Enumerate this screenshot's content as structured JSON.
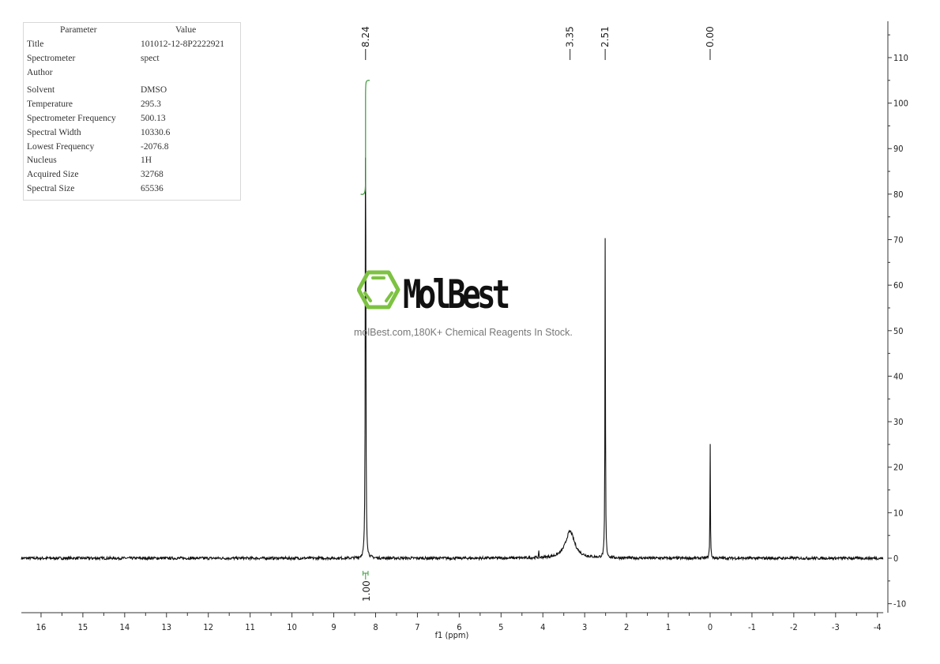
{
  "parameters": {
    "header": {
      "parameter": "Parameter",
      "value": "Value"
    },
    "rows": [
      {
        "k": "Title",
        "v": "101012-12-8P2222921"
      },
      {
        "k": "Spectrometer",
        "v": "spect"
      },
      {
        "k": "Author",
        "v": ""
      },
      {
        "k": "Solvent",
        "v": "DMSO"
      },
      {
        "k": "Temperature",
        "v": "295.3"
      },
      {
        "k": "Spectrometer Frequency",
        "v": "500.13"
      },
      {
        "k": "Spectral Width",
        "v": "10330.6"
      },
      {
        "k": "Lowest Frequency",
        "v": "-2076.8"
      },
      {
        "k": "Nucleus",
        "v": "1H"
      },
      {
        "k": "Acquired Size",
        "v": "32768"
      },
      {
        "k": "Spectral Size",
        "v": "65536"
      }
    ]
  },
  "watermark": {
    "logo_text": "MolBest",
    "tagline": "molBest.com,180K+ Chemical Reagents In Stock.",
    "logo_color": "#7dc242"
  },
  "chart_data": {
    "type": "line",
    "title": "",
    "xlabel": "f1 (ppm)",
    "ylabel": "",
    "xlim": [
      16.47,
      -4.14
    ],
    "ylim": [
      -12,
      118
    ],
    "x_reversed": true,
    "grid": false,
    "x_ticks": [
      "16",
      "15",
      "14",
      "13",
      "12",
      "11",
      "10",
      "9",
      "8",
      "7",
      "6",
      "5",
      "4",
      "3",
      "2",
      "1",
      "0",
      "-1",
      "-2",
      "-3",
      "-4"
    ],
    "y_ticks": [
      "110",
      "100",
      "90",
      "80",
      "70",
      "60",
      "50",
      "40",
      "30",
      "20",
      "10",
      "0",
      "-10"
    ],
    "peaks": [
      {
        "ppm": 8.24,
        "height": 107,
        "width": 0.008
      },
      {
        "ppm": 3.35,
        "height": 5.9,
        "width": 0.13
      },
      {
        "ppm": 2.51,
        "height": 71,
        "width": 0.007
      },
      {
        "ppm": 0.0,
        "height": 26.5,
        "width": 0.006
      },
      {
        "ppm": 4.1,
        "height": 1.5,
        "width": 0.005
      }
    ],
    "peak_labels": [
      "8.24",
      "3.35",
      "2.51",
      "0.00"
    ],
    "peak_label_ppm": [
      8.24,
      3.35,
      2.51,
      0.0
    ],
    "integrals": [
      {
        "from": 8.3,
        "to": 8.18,
        "value": "1.00",
        "y_start": 80,
        "y_end": 105
      }
    ],
    "line_color": "#111111",
    "integral_color": "#3a9a3a"
  }
}
